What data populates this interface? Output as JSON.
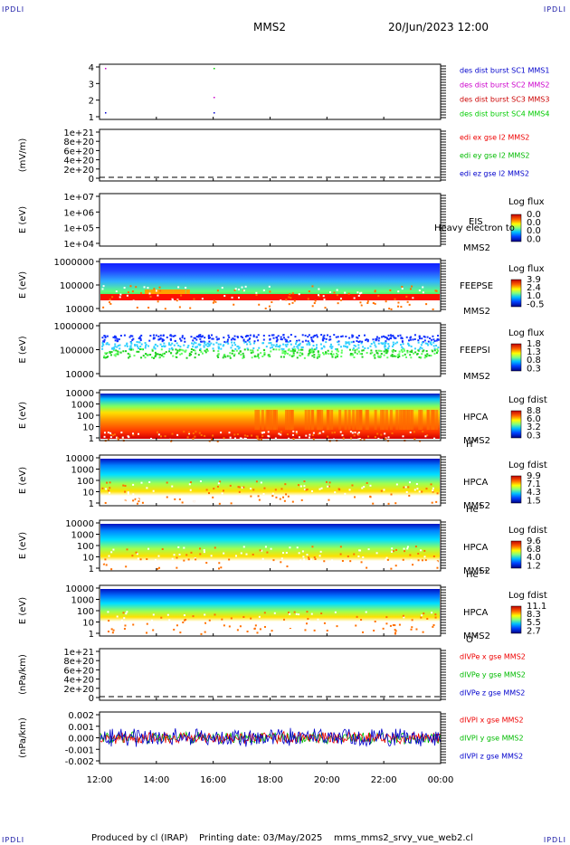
{
  "corners": {
    "tl": "IPDLI",
    "tr": "IPDLI",
    "bl": "IPDLI",
    "br": "IPDLI"
  },
  "header": {
    "spacecraft": "MMS2",
    "datetime": "20/Jun/2023 12:00"
  },
  "footer": {
    "produced": "Produced by cl (IRAP)",
    "printing": "Printing date: 03/May/2025",
    "script": "mms_mms2_srvy_vue_web2.cl"
  },
  "colors": {
    "mms1": "#0000cc",
    "mms2": "#cc00cc",
    "mms3": "#cc0000",
    "mms4": "#00cc00",
    "x": "#ee0000",
    "y": "#00bb00",
    "z": "#0000cc"
  },
  "chart_data": {
    "type": "multi-panel",
    "x_ticks": [
      "12:00",
      "14:00",
      "16:00",
      "18:00",
      "20:00",
      "22:00",
      "00:00"
    ],
    "panels": [
      {
        "id": "p1",
        "type": "scatter",
        "yticks": [
          "4",
          "3",
          "2",
          "1"
        ],
        "ylabel": "",
        "legend": [
          {
            "text": "des dist burst SC1 MMS1",
            "color": "#0000cc"
          },
          {
            "text": "des dist burst SC2 MMS2",
            "color": "#cc00cc"
          },
          {
            "text": "des dist burst SC3 MMS3",
            "color": "#cc0000"
          },
          {
            "text": "des dist burst SC4 MMS4",
            "color": "#00cc00"
          }
        ]
      },
      {
        "id": "p2",
        "type": "line",
        "yticks": [
          "1e+21",
          "8e+20",
          "6e+20",
          "4e+20",
          "2e+20",
          "0"
        ],
        "ylabel": "(mV/m)",
        "legend": [
          {
            "text": "edi ex gse l2 MMS2",
            "color": "#ee0000"
          },
          {
            "text": "edi ey gse l2 MMS2",
            "color": "#00bb00"
          },
          {
            "text": "edi ez gse l2 MMS2",
            "color": "#0000cc"
          }
        ]
      },
      {
        "id": "p3",
        "type": "heatmap",
        "yticks": [
          "1e+07",
          "1e+06",
          "1e+05",
          "1e+04"
        ],
        "ylabel": "E (eV)",
        "inst": "EIS",
        "sub": "MMS2",
        "extra": "Heavy electron to",
        "cb_title": "Log flux",
        "cb_ticks": [
          "0.0",
          "0.0",
          "0.0",
          "0.0"
        ]
      },
      {
        "id": "p4",
        "type": "heatmap",
        "yticks": [
          "1000000",
          "100000",
          "10000"
        ],
        "ylabel": "E (eV)",
        "inst": "FEEPSE",
        "sub": "MMS2",
        "cb_title": "Log flux",
        "cb_ticks": [
          "3.9",
          "2.4",
          "1.0",
          "-0.5"
        ]
      },
      {
        "id": "p5",
        "type": "heatmap",
        "yticks": [
          "1000000",
          "100000",
          "10000"
        ],
        "ylabel": "E (eV)",
        "inst": "FEEPSI",
        "sub": "MMS2",
        "cb_title": "Log flux",
        "cb_ticks": [
          "1.8",
          "1.3",
          "0.8",
          "0.3"
        ]
      },
      {
        "id": "p6",
        "type": "heatmap",
        "yticks": [
          "10000",
          "1000",
          "100",
          "10",
          "1"
        ],
        "ylabel": "E (eV)",
        "inst": "HPCA",
        "sub": "MMS2",
        "species": "H",
        "sup": "+",
        "cb_title": "Log fdist",
        "cb_ticks": [
          "8.8",
          "6.0",
          "3.2",
          "0.3"
        ]
      },
      {
        "id": "p7",
        "type": "heatmap",
        "yticks": [
          "10000",
          "1000",
          "100",
          "10",
          "1"
        ],
        "ylabel": "E (eV)",
        "inst": "HPCA",
        "sub": "MMS2",
        "species": "He",
        "sup": "+",
        "cb_title": "Log fdist",
        "cb_ticks": [
          "9.9",
          "7.1",
          "4.3",
          "1.5"
        ]
      },
      {
        "id": "p8",
        "type": "heatmap",
        "yticks": [
          "10000",
          "1000",
          "100",
          "10",
          "1"
        ],
        "ylabel": "E (eV)",
        "inst": "HPCA",
        "sub": "MMS2",
        "species": "He",
        "sup": "++",
        "cb_title": "Log fdist",
        "cb_ticks": [
          "9.6",
          "6.8",
          "4.0",
          "1.2"
        ]
      },
      {
        "id": "p9",
        "type": "heatmap",
        "yticks": [
          "10000",
          "1000",
          "100",
          "10",
          "1"
        ],
        "ylabel": "E (eV)",
        "inst": "HPCA",
        "sub": "MMS2",
        "species": "O",
        "sup": "+",
        "cb_title": "Log fdist",
        "cb_ticks": [
          "11.1",
          "8.3",
          "5.5",
          "2.7"
        ]
      },
      {
        "id": "p10",
        "type": "line",
        "yticks": [
          "1e+21",
          "8e+20",
          "6e+20",
          "4e+20",
          "2e+20",
          "0"
        ],
        "ylabel": "(nPa/km)",
        "legend": [
          {
            "text": "dIVPe x gse MMS2",
            "color": "#ee0000"
          },
          {
            "text": "dIVPe y gse MMS2",
            "color": "#00bb00"
          },
          {
            "text": "dIVPe z gse MMS2",
            "color": "#0000cc"
          }
        ]
      },
      {
        "id": "p11",
        "type": "line",
        "yticks": [
          "0.002",
          "0.001",
          "0.000",
          "-0.001",
          "-0.002"
        ],
        "ylabel": "(nPa/km)",
        "legend": [
          {
            "text": "dIVPI x gse MMS2",
            "color": "#ee0000"
          },
          {
            "text": "dIVPI y gse MMS2",
            "color": "#00bb00"
          },
          {
            "text": "dIVPI z gse MMS2",
            "color": "#0000cc"
          }
        ]
      }
    ]
  }
}
